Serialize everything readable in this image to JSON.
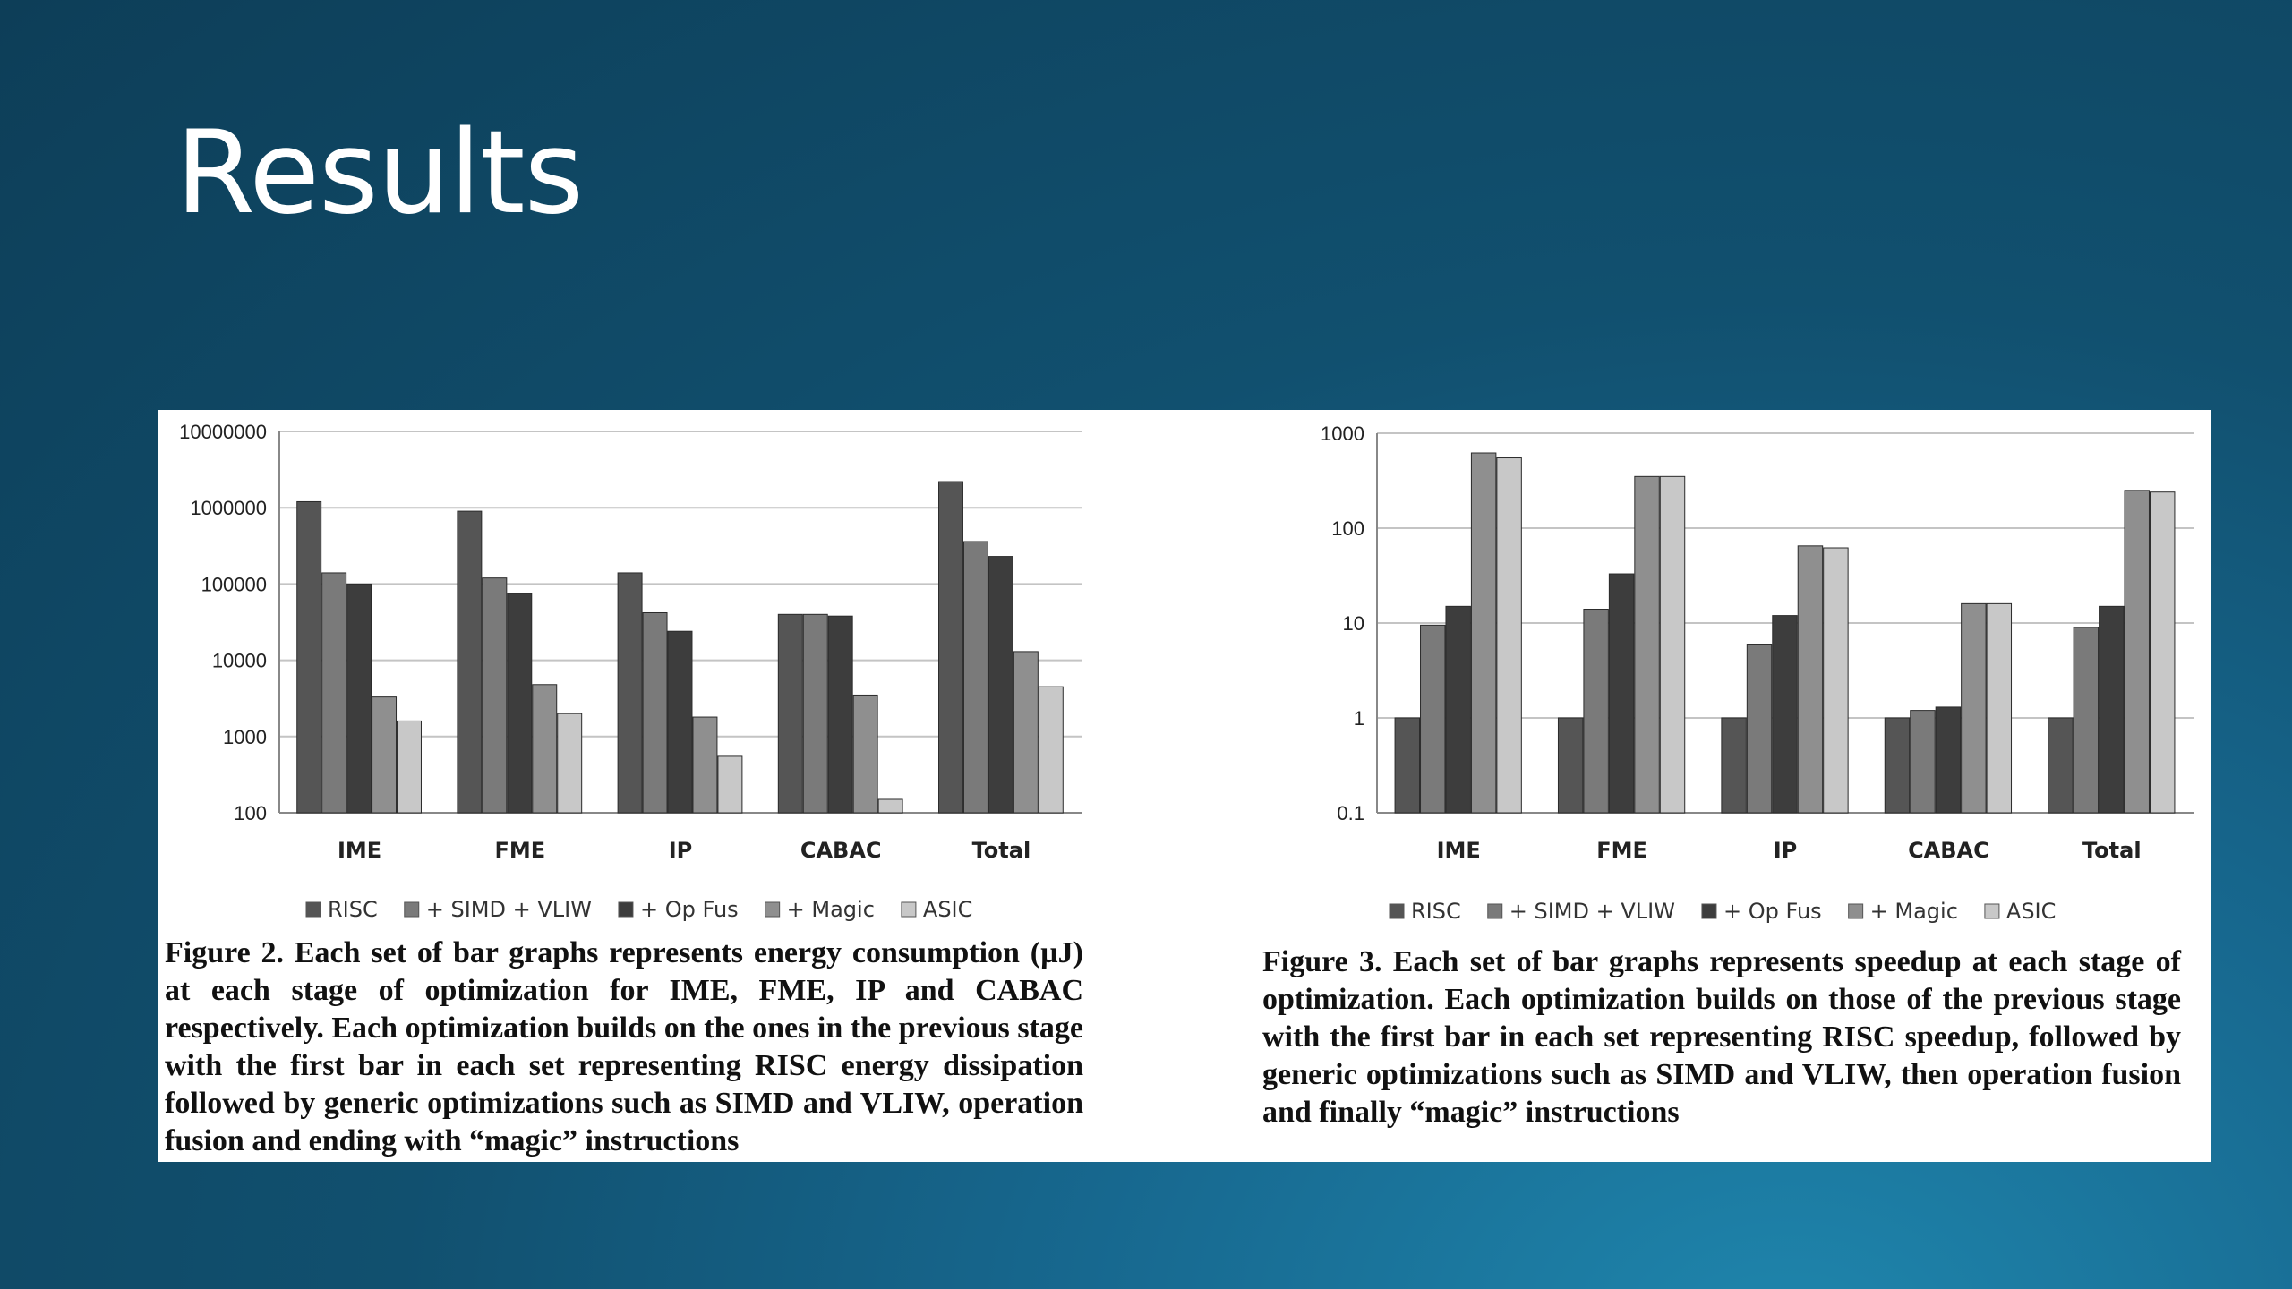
{
  "slide": {
    "title": "Results"
  },
  "series_names": [
    "RISC",
    "+ SIMD + VLIW",
    "+ Op Fus",
    "+ Magic",
    "ASIC"
  ],
  "series_colors": [
    "#555555",
    "#7a7a7a",
    "#3d3d3d",
    "#8f8f8f",
    "#c8c8c8"
  ],
  "captions": {
    "energy": "Figure 2. Each set of bar graphs represents energy consumption (µJ) at each stage of optimization for IME, FME, IP and CABAC respectively. Each optimization builds on the ones in the previous stage with the first bar in each set representing RISC energy dissipation followed by generic optimizations such as SIMD and VLIW, operation fusion and ending with “magic” instructions",
    "speedup": "Figure 3. Each set of bar graphs represents speedup at each stage of optimization. Each optimization builds on those of the previous stage with the first bar in each set representing RISC speedup, followed by generic optimizations such as SIMD and VLIW, then operation fusion and finally “magic” instructions"
  },
  "chart_data": [
    {
      "type": "bar",
      "scale": "log",
      "categories": [
        "IME",
        "FME",
        "IP",
        "CABAC",
        "Total"
      ],
      "series": [
        {
          "name": "RISC",
          "values": [
            1200000,
            900000,
            140000,
            40000,
            2200000
          ]
        },
        {
          "name": "+ SIMD + VLIW",
          "values": [
            140000,
            120000,
            42000,
            40000,
            360000
          ]
        },
        {
          "name": "+ Op Fus",
          "values": [
            100000,
            75000,
            24000,
            38000,
            230000
          ]
        },
        {
          "name": "+ Magic",
          "values": [
            3300,
            4800,
            1800,
            3500,
            13000
          ]
        },
        {
          "name": "ASIC",
          "values": [
            1600,
            2000,
            550,
            150,
            4500
          ]
        }
      ],
      "ylim": [
        100,
        10000000
      ],
      "yticks": [
        100,
        1000,
        10000,
        100000,
        1000000,
        10000000
      ],
      "ytick_labels": [
        "100",
        "1000",
        "10000",
        "100000",
        "1000000",
        "10000000"
      ],
      "grid": true,
      "legend": "bottom",
      "title": "",
      "xlabel": "",
      "ylabel": ""
    },
    {
      "type": "bar",
      "scale": "log",
      "categories": [
        "IME",
        "FME",
        "IP",
        "CABAC",
        "Total"
      ],
      "series": [
        {
          "name": "RISC",
          "values": [
            1,
            1,
            1,
            1,
            1
          ]
        },
        {
          "name": "+ SIMD + VLIW",
          "values": [
            9.5,
            14,
            6,
            1.2,
            9
          ]
        },
        {
          "name": "+ Op Fus",
          "values": [
            15,
            33,
            12,
            1.3,
            15
          ]
        },
        {
          "name": "+ Magic",
          "values": [
            620,
            350,
            65,
            16,
            250
          ]
        },
        {
          "name": "ASIC",
          "values": [
            550,
            350,
            62,
            16,
            240
          ]
        }
      ],
      "ylim": [
        0.1,
        1000
      ],
      "yticks": [
        0.1,
        1,
        10,
        100,
        1000
      ],
      "ytick_labels": [
        "0.1",
        "1",
        "10",
        "100",
        "1000"
      ],
      "grid": true,
      "legend": "bottom",
      "title": "",
      "xlabel": "",
      "ylabel": ""
    }
  ]
}
